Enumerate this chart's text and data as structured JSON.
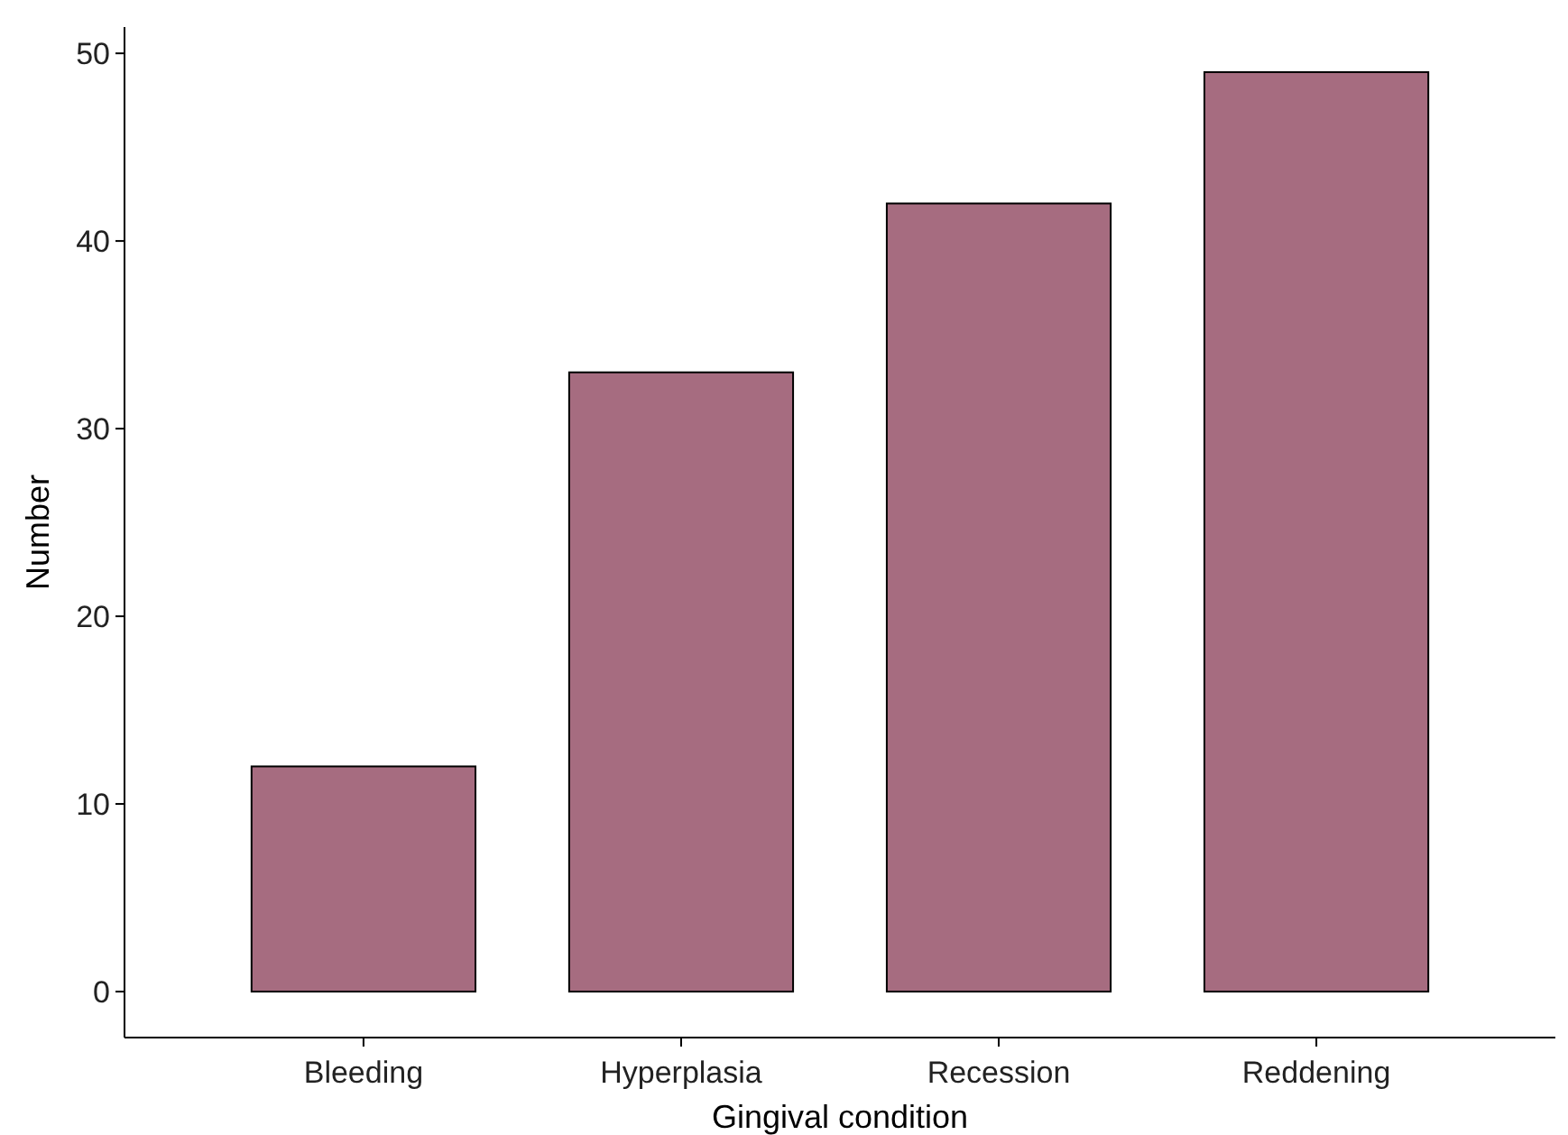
{
  "chart_data": {
    "type": "bar",
    "xlabel": "Gingival condition",
    "ylabel": "Number",
    "categories": [
      "Bleeding",
      "Hyperplasia",
      "Recession",
      "Reddening"
    ],
    "values": [
      12,
      33,
      42,
      49
    ],
    "color": "#a66c80",
    "ylim": [
      -2.45,
      51.4
    ],
    "yticks": [
      0,
      10,
      20,
      30,
      40,
      50
    ],
    "grid": false
  }
}
